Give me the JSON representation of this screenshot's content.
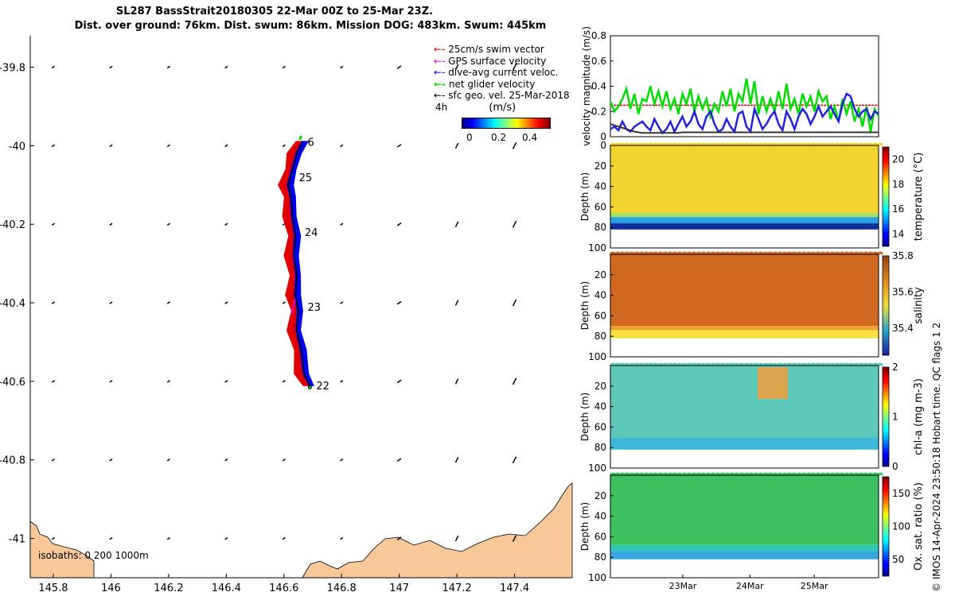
{
  "title_line1": "SL287 BassStrait20180305 22-Mar 00Z to 25-Mar 23Z.",
  "title_line2": "Dist. over ground: 76km. Dist. swum: 86km. Mission DOG: 483km. Swum: 445km",
  "credit": "© IMOS 14-Apr-2024 23:50:18 Hobart time. QC flags 1  2",
  "colors": {
    "land": "#f8c899",
    "swim": "#e00000",
    "gps": "#e000e0",
    "current": "#0000ee",
    "net": "#00dd00",
    "black": "#000000"
  },
  "chart_data": [
    {
      "type": "scatter",
      "name": "track-map",
      "xlabel": "",
      "ylabel": "",
      "xlim": [
        145.72,
        147.6
      ],
      "ylim": [
        -41.1,
        -39.72
      ],
      "x_ticks": [
        "145.8",
        "146",
        "146.2",
        "146.4",
        "146.6",
        "146.8",
        "147",
        "147.2",
        "147.4"
      ],
      "x_tick_values": [
        145.8,
        146,
        146.2,
        146.4,
        146.6,
        146.8,
        147,
        147.2,
        147.4
      ],
      "y_ticks": [
        "-39.8",
        "-40",
        "-40.2",
        "-40.4",
        "-40.6",
        "-40.8",
        "-41"
      ],
      "y_tick_values": [
        -39.8,
        -40,
        -40.2,
        -40.4,
        -40.6,
        -40.8,
        -41
      ],
      "legend": [
        {
          "label": "25cm/s swim vector",
          "color": "#e00000"
        },
        {
          "label": "GPS surface velocity",
          "color": "#e000e0"
        },
        {
          "label": "dive-avg current veloc.",
          "color": "#0000ee"
        },
        {
          "label": "net glider velocity",
          "color": "#00dd00"
        },
        {
          "label": "sfc geo. vel. 25-Mar-2018",
          "color": "#000000"
        }
      ],
      "legend_extra": "4h",
      "colorbar_title": "(m/s)",
      "colorbar_ticks": [
        "0",
        "0.2",
        "0.4"
      ],
      "day_labels": [
        {
          "label": "22",
          "lon": 146.69,
          "lat": -40.61
        },
        {
          "label": "23",
          "lon": 146.66,
          "lat": -40.41
        },
        {
          "label": "24",
          "lon": 146.65,
          "lat": -40.22
        },
        {
          "label": "25",
          "lon": 146.63,
          "lat": -40.08
        },
        {
          "label": "6",
          "lon": 146.66,
          "lat": -39.99
        }
      ],
      "track": [
        [
          146.69,
          -40.61
        ],
        [
          146.67,
          -40.58
        ],
        [
          146.66,
          -40.52
        ],
        [
          146.645,
          -40.47
        ],
        [
          146.65,
          -40.42
        ],
        [
          146.64,
          -40.38
        ],
        [
          146.645,
          -40.33
        ],
        [
          146.635,
          -40.28
        ],
        [
          146.64,
          -40.23
        ],
        [
          146.63,
          -40.18
        ],
        [
          146.625,
          -40.13
        ],
        [
          146.615,
          -40.1
        ],
        [
          146.63,
          -40.06
        ],
        [
          146.645,
          -40.02
        ],
        [
          146.665,
          -39.99
        ]
      ],
      "isobaths_label": "isobaths: 0   200  1000m"
    },
    {
      "type": "line",
      "name": "velocity-magnitude",
      "ylabel": "velocity magnitude (m/s)",
      "ylim": [
        0,
        0.8
      ],
      "y_ticks": [
        "0",
        "0.2",
        "0.4",
        "0.6",
        "0.8"
      ],
      "series": [
        {
          "name": "net glider velocity",
          "color": "#00dd00",
          "values": [
            0.28,
            0.2,
            0.24,
            0.3,
            0.38,
            0.22,
            0.34,
            0.18,
            0.3,
            0.28,
            0.4,
            0.26,
            0.36,
            0.24,
            0.36,
            0.22,
            0.3,
            0.18,
            0.34,
            0.26,
            0.38,
            0.2,
            0.32,
            0.22,
            0.3,
            0.16,
            0.26,
            0.2,
            0.36,
            0.24,
            0.38,
            0.2,
            0.34,
            0.28,
            0.46,
            0.26,
            0.44,
            0.18,
            0.32,
            0.2,
            0.3,
            0.2,
            0.36,
            0.22,
            0.42,
            0.22,
            0.3,
            0.18,
            0.34,
            0.24,
            0.32,
            0.2,
            0.36,
            0.28,
            0.32,
            0.14,
            0.24,
            0.12,
            0.3,
            0.18,
            0.28,
            0.12,
            0.22,
            0.08,
            0.24,
            0.04,
            0.22,
            0.16
          ]
        },
        {
          "name": "dive-avg current",
          "color": "#2222dd",
          "values": [
            0.06,
            0.08,
            0.05,
            0.12,
            0.06,
            0.04,
            0.08,
            0.1,
            0.12,
            0.08,
            0.05,
            0.14,
            0.08,
            0.03,
            0.06,
            0.12,
            0.04,
            0.1,
            0.16,
            0.08,
            0.12,
            0.2,
            0.1,
            0.06,
            0.16,
            0.2,
            0.1,
            0.04,
            0.06,
            0.14,
            0.08,
            0.04,
            0.18,
            0.2,
            0.08,
            0.04,
            0.22,
            0.14,
            0.06,
            0.1,
            0.16,
            0.2,
            0.1,
            0.05,
            0.2,
            0.14,
            0.06,
            0.16,
            0.22,
            0.18,
            0.1,
            0.16,
            0.24,
            0.16,
            0.2,
            0.24,
            0.18,
            0.12,
            0.26,
            0.34,
            0.32,
            0.22,
            0.16,
            0.2,
            0.22,
            0.14,
            0.2,
            0.18
          ]
        },
        {
          "name": "sfc geo. vel.",
          "color": "#333333",
          "values": [
            0.1,
            0.09,
            0.08,
            0.07,
            0.06,
            0.05,
            0.04,
            0.035,
            0.03,
            0.03,
            0.03,
            0.03,
            0.03,
            0.03,
            0.03,
            0.03,
            0.03,
            0.03,
            0.035,
            0.035,
            0.035,
            0.035,
            0.035,
            0.035,
            0.035,
            0.035,
            0.035,
            0.035,
            0.035,
            0.035,
            0.035,
            0.035,
            0.035,
            0.035,
            0.035,
            0.035,
            0.035,
            0.035,
            0.035,
            0.035,
            0.035,
            0.035,
            0.035,
            0.035,
            0.035,
            0.035,
            0.035,
            0.035,
            0.035,
            0.035,
            0.035,
            0.035,
            0.035,
            0.035,
            0.035,
            0.035,
            0.035,
            0.035,
            0.035,
            0.035,
            0.035,
            0.035,
            0.035,
            0.035,
            0.035,
            0.035,
            0.035,
            0.035
          ]
        },
        {
          "name": "swim vector 25cm/s",
          "color": "#e00000",
          "values": [
            0.25
          ]
        }
      ]
    },
    {
      "type": "heatmap",
      "name": "temperature",
      "ylabel": "Depth (m)",
      "clabel": "temperature (°C)",
      "ylim": [
        100,
        0
      ],
      "y_ticks": [
        "0",
        "20",
        "40",
        "60",
        "80",
        "100"
      ],
      "clim": [
        13,
        21
      ],
      "c_ticks": [
        "14",
        "16",
        "18",
        "20"
      ]
    },
    {
      "type": "heatmap",
      "name": "salinity",
      "ylabel": "Depth (m)",
      "clabel": "salinity",
      "ylim": [
        100,
        0
      ],
      "y_ticks": [
        "20",
        "40",
        "60",
        "80",
        "100"
      ],
      "clim": [
        35.25,
        35.8
      ],
      "c_ticks": [
        "35.4",
        "35.6",
        "35.8"
      ]
    },
    {
      "type": "heatmap",
      "name": "chlorophyll",
      "ylabel": "Depth (m)",
      "clabel": "chl-a (mg m-3)",
      "ylim": [
        100,
        0
      ],
      "y_ticks": [
        "20",
        "40",
        "60",
        "80",
        "100"
      ],
      "clim": [
        0,
        2
      ],
      "c_ticks": [
        "0",
        "1",
        "2"
      ]
    },
    {
      "type": "heatmap",
      "name": "oxygen-saturation",
      "ylabel": "Depth (m)",
      "clabel": "Ox. sat. ratio (%)",
      "ylim": [
        100,
        0
      ],
      "y_ticks": [
        "20",
        "40",
        "60",
        "80",
        "100"
      ],
      "clim": [
        25,
        175
      ],
      "c_ticks": [
        "50",
        "100",
        "150"
      ],
      "x_ticks": [
        "23Mar",
        "24Mar",
        "25Mar"
      ]
    }
  ]
}
